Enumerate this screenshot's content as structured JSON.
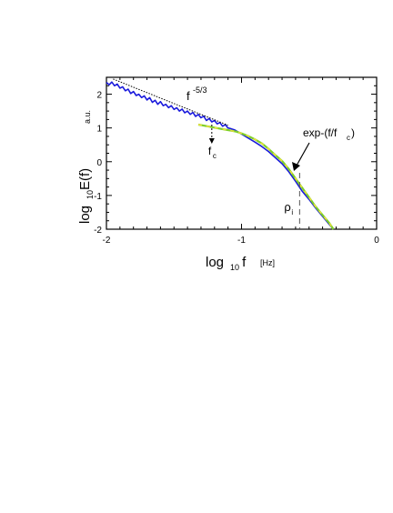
{
  "chart_data": {
    "type": "line",
    "xlabel": {
      "main": "log",
      "sub": "10",
      "tail": " f",
      "unit": "[Hz]"
    },
    "ylabel": {
      "main": "log",
      "sub": "10",
      "tail": "E(f)",
      "unit": "a.u."
    },
    "xlim": [
      -2,
      0
    ],
    "ylim": [
      -2,
      2.5
    ],
    "xticks": [
      -2,
      -1,
      0
    ],
    "xtick_labels": [
      "-2",
      "-1",
      "0"
    ],
    "yticks": [
      -2,
      -1,
      0,
      1,
      2
    ],
    "ytick_labels": [
      "-2",
      "-1",
      "0",
      "1",
      "2"
    ],
    "colors": {
      "spectrum": "#1a1adc",
      "fit_green": "#7fcf2a",
      "fit_yellow": "#f2e23a",
      "ink": "#000000"
    },
    "series": [
      {
        "kind": "spectrum",
        "x": [
          -2.0,
          -1.98,
          -1.96,
          -1.94,
          -1.92,
          -1.9,
          -1.88,
          -1.86,
          -1.84,
          -1.82,
          -1.8,
          -1.78,
          -1.76,
          -1.74,
          -1.72,
          -1.7,
          -1.68,
          -1.66,
          -1.64,
          -1.62,
          -1.6,
          -1.58,
          -1.56,
          -1.54,
          -1.52,
          -1.5,
          -1.48,
          -1.46,
          -1.44,
          -1.42,
          -1.4,
          -1.38,
          -1.36,
          -1.34,
          -1.32,
          -1.3,
          -1.28,
          -1.26,
          -1.24,
          -1.22,
          -1.2,
          -1.18,
          -1.16,
          -1.14,
          -1.12,
          -1.1,
          -1.08,
          -1.05,
          -1.0,
          -0.95,
          -0.9,
          -0.85,
          -0.8,
          -0.75,
          -0.7,
          -0.65,
          -0.6,
          -0.55,
          -0.5,
          -0.45,
          -0.4,
          -0.35,
          -0.32
        ],
        "y": [
          2.35,
          2.28,
          2.36,
          2.25,
          2.3,
          2.18,
          2.22,
          2.1,
          2.15,
          2.02,
          2.08,
          1.96,
          2.0,
          1.9,
          1.95,
          1.83,
          1.9,
          1.76,
          1.82,
          1.7,
          1.78,
          1.66,
          1.7,
          1.6,
          1.66,
          1.55,
          1.6,
          1.5,
          1.56,
          1.45,
          1.5,
          1.4,
          1.46,
          1.34,
          1.4,
          1.3,
          1.35,
          1.22,
          1.28,
          1.18,
          1.22,
          1.12,
          1.16,
          1.05,
          1.1,
          1.0,
          0.98,
          0.94,
          0.82,
          0.7,
          0.58,
          0.45,
          0.3,
          0.12,
          -0.06,
          -0.3,
          -0.58,
          -0.88,
          -1.12,
          -1.38,
          -1.62,
          -1.86,
          -2.0
        ]
      },
      {
        "kind": "fit",
        "x": [
          -1.32,
          -1.28,
          -1.24,
          -1.2,
          -1.16,
          -1.12,
          -1.08,
          -1.04,
          -1.0,
          -0.95,
          -0.9,
          -0.85,
          -0.8,
          -0.75,
          -0.7,
          -0.65,
          -0.6,
          -0.55,
          -0.5,
          -0.45,
          -0.4,
          -0.35,
          -0.32
        ],
        "y": [
          1.1,
          1.07,
          1.04,
          1.01,
          0.98,
          0.95,
          0.92,
          0.89,
          0.84,
          0.76,
          0.66,
          0.54,
          0.38,
          0.2,
          0.02,
          -0.22,
          -0.5,
          -0.78,
          -1.06,
          -1.34,
          -1.58,
          -1.82,
          -2.0
        ]
      },
      {
        "kind": "power-law guide",
        "x": [
          -1.95,
          -1.1
        ],
        "y": [
          2.45,
          1.08
        ]
      }
    ],
    "annotations": [
      {
        "id": "powerlaw",
        "base": "f",
        "sup": "-5/3"
      },
      {
        "id": "cutoff",
        "base": "f",
        "sub": "c",
        "x": -1.22
      },
      {
        "id": "fitlabel",
        "text": "exp-(f/f",
        "sub": "c",
        "close": ")"
      },
      {
        "id": "rho",
        "base": "ρ",
        "sub": "i",
        "x": -0.57
      }
    ]
  }
}
